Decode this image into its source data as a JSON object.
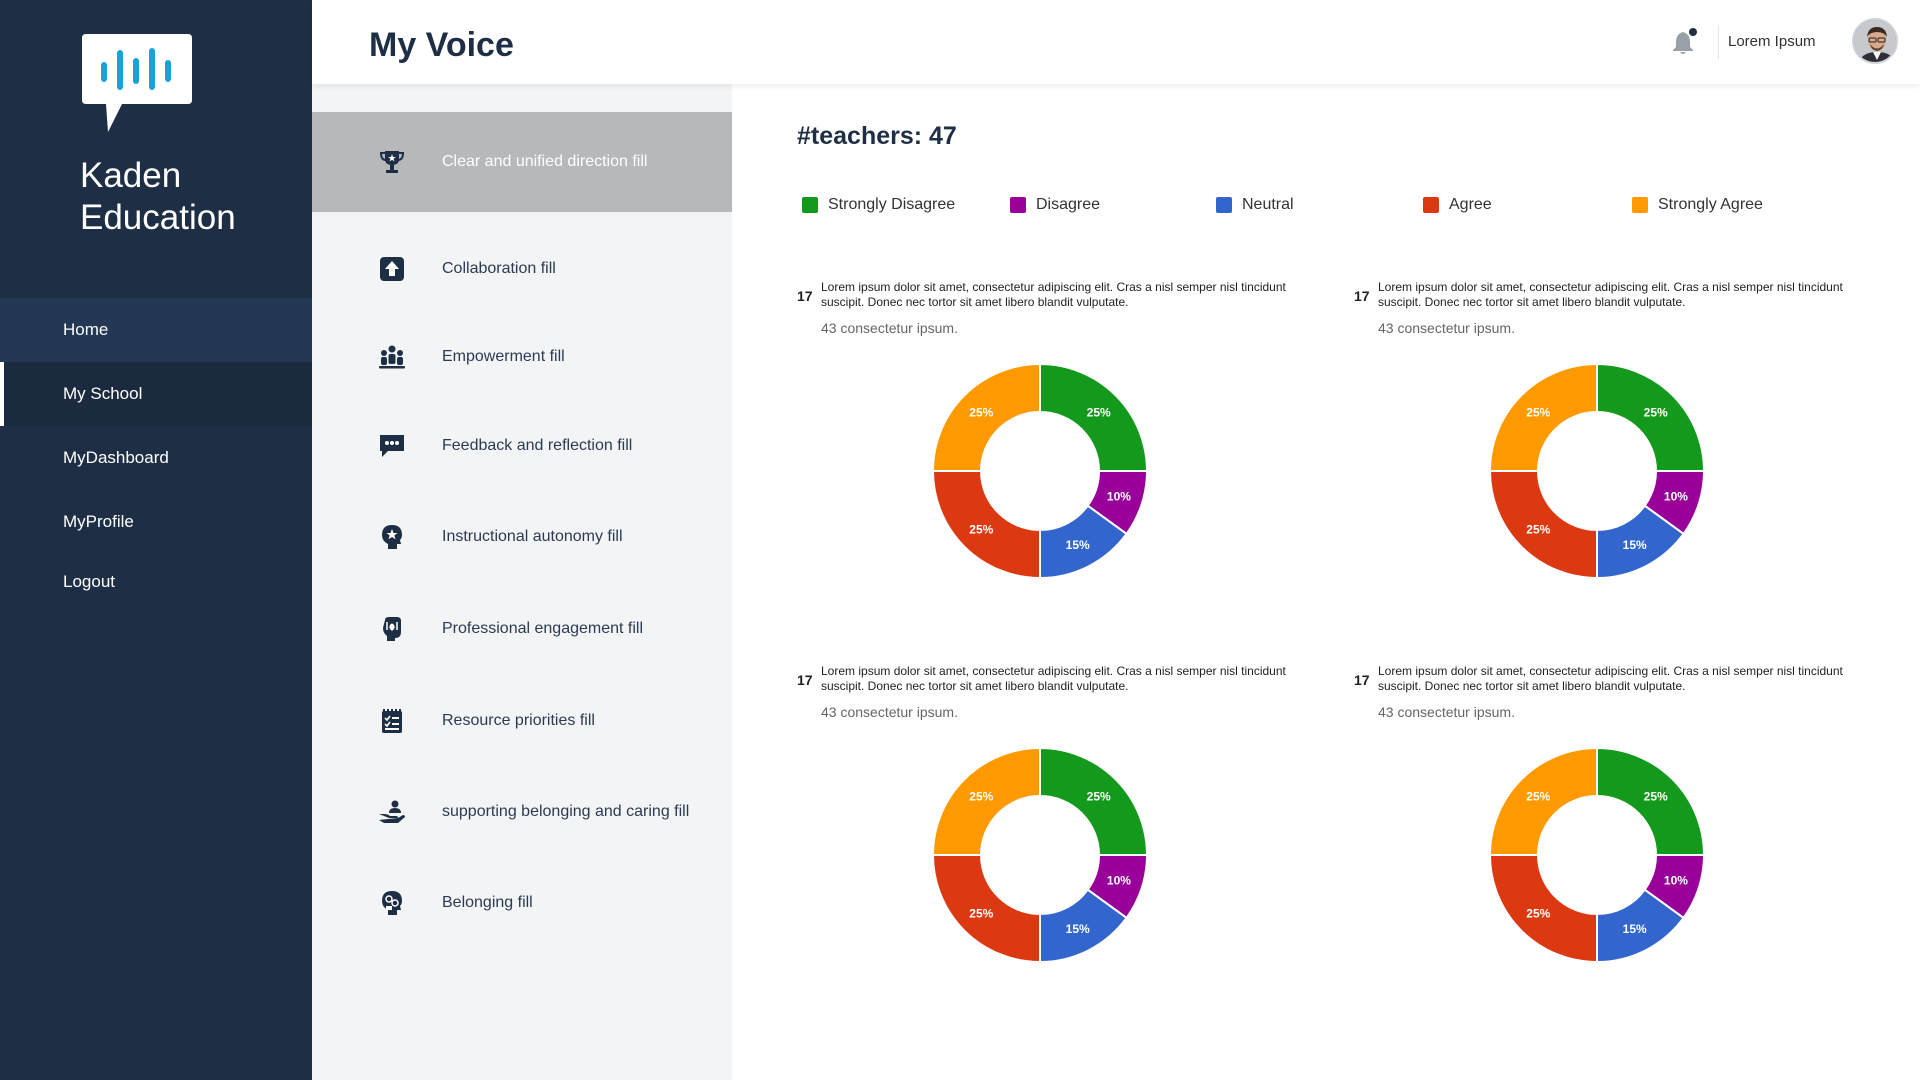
{
  "brand": {
    "line1": "Kaden",
    "line2": "Education"
  },
  "nav": [
    {
      "label": "Home"
    },
    {
      "label": "My School"
    },
    {
      "label": "MyDashboard"
    },
    {
      "label": "MyProfile"
    },
    {
      "label": "Logout"
    }
  ],
  "header": {
    "title": "My Voice",
    "user_name": "Lorem Ipsum"
  },
  "categories": [
    {
      "label": "Clear and unified direction fill",
      "icon": "trophy-icon"
    },
    {
      "label": "Collaboration fill",
      "icon": "arrow-up-box-icon"
    },
    {
      "label": "Empowerment fill",
      "icon": "people-group-icon"
    },
    {
      "label": "Feedback and reflection fill",
      "icon": "chat-dots-icon"
    },
    {
      "label": "Instructional autonomy fill",
      "icon": "head-star-icon"
    },
    {
      "label": "Professional engagement fill",
      "icon": "hand-heart-icon"
    },
    {
      "label": "Resource priorities fill",
      "icon": "checklist-icon"
    },
    {
      "label": "supporting belonging and caring fill",
      "icon": "hand-person-icon"
    },
    {
      "label": "Belonging fill",
      "icon": "head-gears-icon"
    }
  ],
  "main": {
    "teachers": "#teachers: 47",
    "legend": [
      {
        "label": "Strongly Disagree",
        "color": "#139a1c"
      },
      {
        "label": "Disagree",
        "color": "#990099"
      },
      {
        "label": "Neutral",
        "color": "#3366cc"
      },
      {
        "label": "Agree",
        "color": "#dc3912"
      },
      {
        "label": "Strongly Agree",
        "color": "#ff9900"
      }
    ],
    "questions": [
      {
        "num": "17",
        "text": "Lorem ipsum dolor sit amet, consectetur adipiscing elit. Cras a nisl semper nisl tincidunt suscipit. Donec nec tortor sit amet libero blandit vulputate.",
        "sub": "43 consectetur ipsum."
      },
      {
        "num": "17",
        "text": "Lorem ipsum dolor sit amet, consectetur adipiscing elit. Cras a nisl semper nisl tincidunt suscipit. Donec nec tortor sit amet libero blandit vulputate.",
        "sub": "43 consectetur ipsum."
      },
      {
        "num": "17",
        "text": "Lorem ipsum dolor sit amet, consectetur adipiscing elit. Cras a nisl semper nisl tincidunt suscipit. Donec nec tortor sit amet libero blandit vulputate.",
        "sub": "43 consectetur ipsum."
      },
      {
        "num": "17",
        "text": "Lorem ipsum dolor sit amet, consectetur adipiscing elit. Cras a nisl semper nisl tincidunt suscipit. Donec nec tortor sit amet libero blandit vulputate.",
        "sub": "43 consectetur ipsum."
      }
    ]
  },
  "chart_data": [
    {
      "type": "pie",
      "categories": [
        "Strongly Disagree",
        "Disagree",
        "Neutral",
        "Agree",
        "Strongly Agree"
      ],
      "values": [
        25,
        10,
        15,
        25,
        25
      ],
      "labels": [
        "25%",
        "10%",
        "15%",
        "25%",
        "25%"
      ]
    },
    {
      "type": "pie",
      "categories": [
        "Strongly Disagree",
        "Disagree",
        "Neutral",
        "Agree",
        "Strongly Agree"
      ],
      "values": [
        25,
        10,
        15,
        25,
        25
      ],
      "labels": [
        "25%",
        "10%",
        "15%",
        "25%",
        "25%"
      ]
    },
    {
      "type": "pie",
      "categories": [
        "Strongly Disagree",
        "Disagree",
        "Neutral",
        "Agree",
        "Strongly Agree"
      ],
      "values": [
        25,
        10,
        15,
        25,
        25
      ],
      "labels": [
        "25%",
        "10%",
        "15%",
        "25%",
        "25%"
      ]
    },
    {
      "type": "pie",
      "categories": [
        "Strongly Disagree",
        "Disagree",
        "Neutral",
        "Agree",
        "Strongly Agree"
      ],
      "values": [
        25,
        10,
        15,
        25,
        25
      ],
      "labels": [
        "25%",
        "10%",
        "15%",
        "25%",
        "25%"
      ]
    }
  ]
}
